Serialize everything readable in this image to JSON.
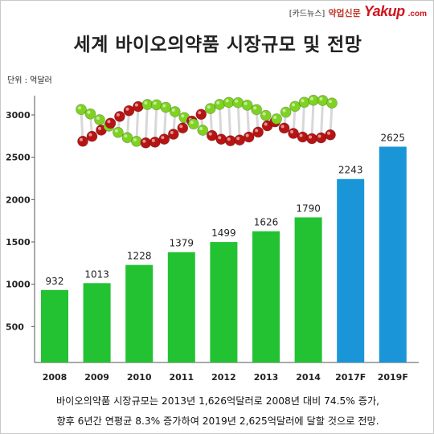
{
  "brand": {
    "tag": "[카드뉴스]",
    "sub": "약업신문",
    "logo": "Yakup",
    "domain": ".com"
  },
  "title": "세계 바이오의약품 시장규모 및 전망",
  "unit": "단위 : 억달러",
  "caption": {
    "line1": "바이오의약품 시장규모는 2013년 1,626억달러로 2008년 대비 74.5% 증가,",
    "line2": "향후 6년간 연평균 8.3% 증가하여 2019년 2,625억달러에 달할 것으로 전망."
  },
  "colors": {
    "actual": "#22c232",
    "forecast": "#1a95d8",
    "dna_red": "#b81414",
    "dna_green": "#7ed321"
  },
  "chart_data": {
    "type": "bar",
    "categories": [
      "2008",
      "2009",
      "2010",
      "2011",
      "2012",
      "2013",
      "2014",
      "2017F",
      "2019F"
    ],
    "values": [
      932,
      1013,
      1228,
      1379,
      1499,
      1626,
      1790,
      2243,
      2625
    ],
    "forecast": [
      false,
      false,
      false,
      false,
      false,
      false,
      false,
      true,
      true
    ],
    "ylim": [
      0,
      3000
    ],
    "yticks": [
      500,
      1000,
      1500,
      2000,
      2500,
      3000
    ],
    "grid": false,
    "legend": "none"
  }
}
